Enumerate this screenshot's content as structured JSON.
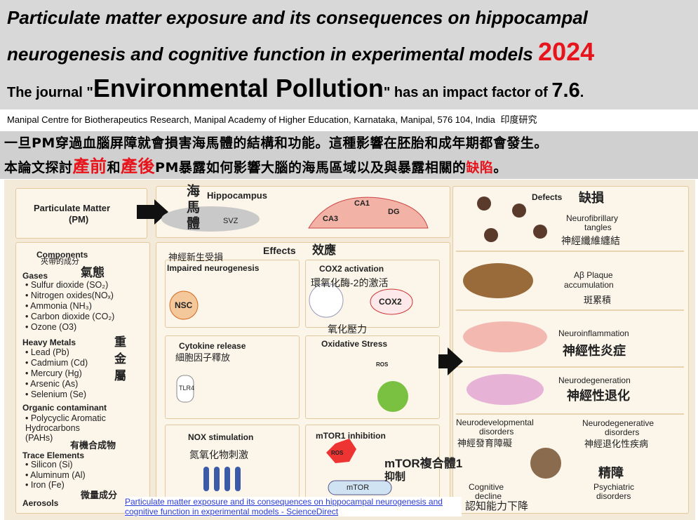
{
  "header": {
    "title_line1": "Particulate matter exposure and its consequences on hippocampal",
    "title_line2": "neurogenesis and cognitive function in experimental models",
    "year": "2024",
    "journal_prefix": "The journal \"",
    "journal_name": "Environmental Pollution",
    "journal_suffix": "\" has an impact factor of ",
    "impact_factor": "7.6",
    "journal_end": "."
  },
  "affiliation": {
    "text": "Manipal Centre for Biotherapeutics Research, Manipal Academy of Higher Education, Karnataka, Manipal, 576 104, India",
    "note": "印度研究"
  },
  "summary": {
    "line1": "一旦PM穿過血腦屏障就會損害海馬體的結構和功能。這種影響在胚胎和成年期都會發生。",
    "line2": [
      "本論文探討",
      "產前",
      "和",
      "產後",
      "PM暴露如何影響大腦的海馬區域以及與暴露相關的",
      "缺陷",
      "。"
    ]
  },
  "figure": {
    "pm": [
      "Particulate Matter",
      "(PM)"
    ],
    "hippocampus": {
      "label_cn": "海馬體",
      "title": "Hippocampus",
      "svz": "SVZ",
      "ca1": "CA1",
      "dg": "DG",
      "ca3": "CA3"
    },
    "components": {
      "title": "Components",
      "title_cn": "夾帶的成分",
      "gases": {
        "title": "Gases",
        "cn": "氣態",
        "items": [
          "Sulfur dioxide (SO₂)",
          "Nitrogen oxides(NOₓ)",
          "Ammonia (NH₃)",
          "Carbon dioxide (CO₂)",
          "Ozone (O3)"
        ]
      },
      "metals": {
        "title": "Heavy Metals",
        "cn": [
          "重",
          "金",
          "屬"
        ],
        "items": [
          "Lead (Pb)",
          "Cadmium (Cd)",
          "Mercury (Hg)",
          "Arsenic (As)",
          "Selenium (Se)"
        ]
      },
      "organic": {
        "title": "Organic contaminant",
        "items": [
          "Polycyclic Aromatic",
          "Hydrocarbons",
          "(PAHs)"
        ],
        "cn": "有機合成物"
      },
      "trace": {
        "title": "Trace Elements",
        "items": [
          "Silicon (Si)",
          "Aluminum (Al)",
          "Iron (Fe)"
        ],
        "cn": "微量成分"
      },
      "aerosols": "Aerosols"
    },
    "effects": {
      "title": "Effects",
      "title_cn": "效應",
      "neuro": {
        "cn": "神經新生受損",
        "title": "Impaired neurogenesis",
        "nsc": "NSC"
      },
      "cox2": {
        "title": "COX2 activation",
        "cn": "環氧化酶-2的激活",
        "label": "COX2"
      },
      "oxidative": {
        "cn": "氧化壓力",
        "title": "Oxidative Stress",
        "ros": "ROS"
      },
      "cytokine": {
        "title": "Cytokine release",
        "cn": "細胞因子釋放",
        "tlr": "TLR4"
      },
      "nox": {
        "title": "NOX stimulation",
        "cn": "氮氧化物刺激"
      },
      "mtor": {
        "title": "mTOR1 inhibition",
        "ros": "ROS",
        "cn": "mTOR複合體1",
        "cn2": "抑制",
        "label": "mTOR"
      }
    },
    "defects": {
      "title": "Defects",
      "title_cn": "缺損",
      "tangles": [
        "Neurofibrillary",
        "tangles",
        "神經纖維纏結"
      ],
      "plaque": [
        "Aβ Plaque",
        "accumulation",
        "斑累積"
      ],
      "inflammation": [
        "Neuroinflammation",
        "神經性炎症"
      ],
      "degeneration": [
        "Neurodegeneration",
        "神經性退化"
      ],
      "dev": [
        "Neurodevelopmental",
        "disorders",
        "神經發育障礙"
      ],
      "degen": [
        "Neurodegenerative",
        "disorders",
        "神經退化性疾病"
      ],
      "psych_cn": "精障",
      "cognitive": [
        "Cognitive",
        "decline",
        "認知能力下降"
      ],
      "psych": [
        "Psychiatric",
        "disorders"
      ]
    }
  },
  "link": "Particulate matter exposure and its consequences on hippocampal neurogenesis and cognitive function in experimental models - ScienceDirect"
}
